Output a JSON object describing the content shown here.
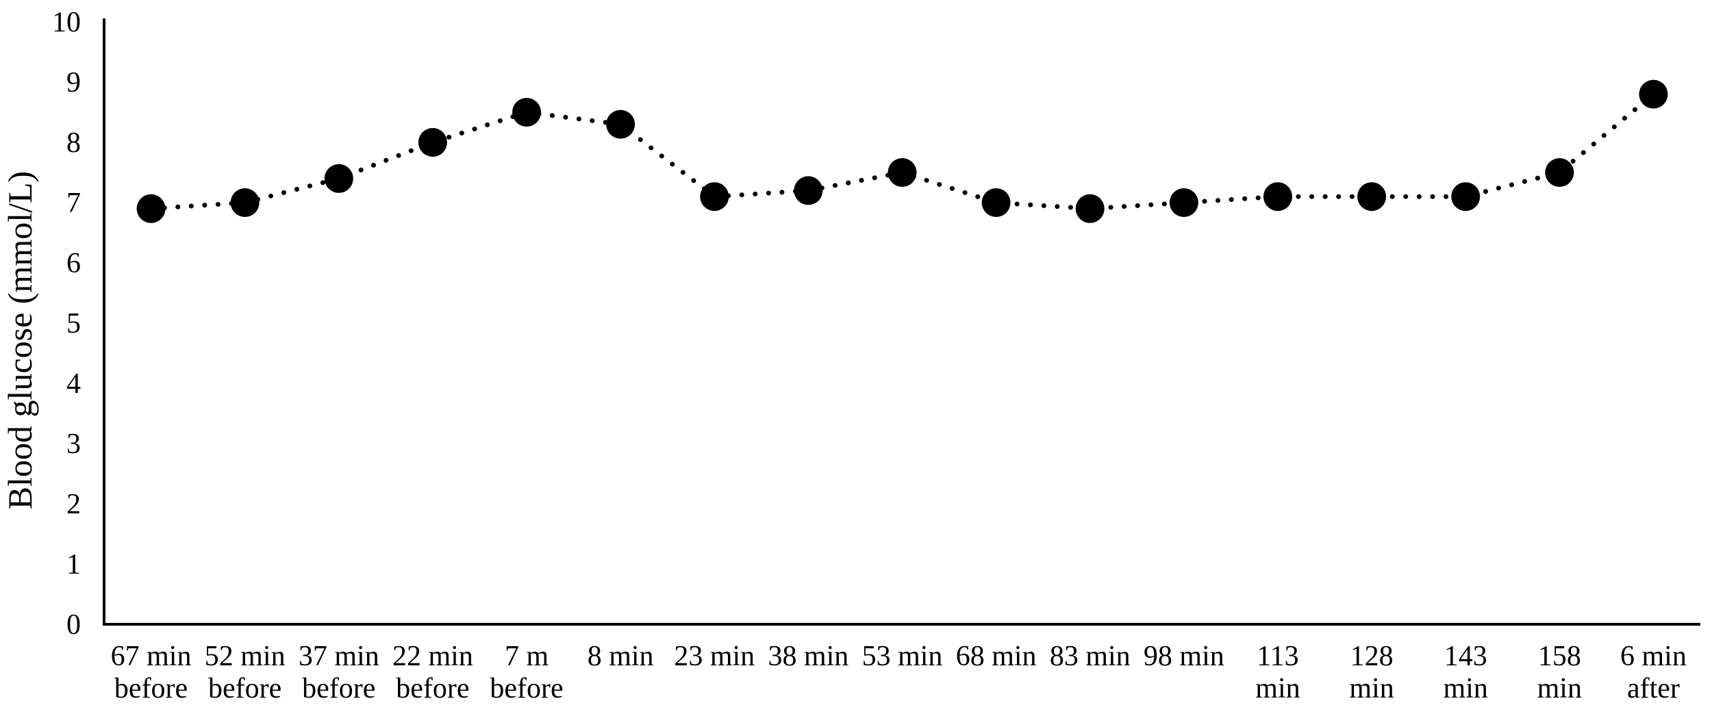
{
  "figure": {
    "background": "#ffffff",
    "series_color": "#000000",
    "axis_color": "#000000"
  },
  "chart_data": {
    "type": "line",
    "title": "",
    "xlabel": "",
    "ylabel": "Blood glucose (mmol/L)",
    "ylim": [
      0,
      10
    ],
    "yticks": [
      0,
      1,
      2,
      3,
      4,
      5,
      6,
      7,
      8,
      9,
      10
    ],
    "grid": false,
    "legend": false,
    "line_style": "dotted",
    "marker": "filled-circle",
    "marker_color": "#000000",
    "series_name": "Blood glucose",
    "categories": [
      "67 min before",
      "52 min before",
      "37 min before",
      "22 min before",
      "7 m before",
      "8 min",
      "23 min",
      "38 min",
      "53 min",
      "68 min",
      "83 min",
      "98 min",
      "113 min",
      "128 min",
      "143 min",
      "158 min",
      "6 min after"
    ],
    "category_label_lines": [
      [
        "67 min",
        "before"
      ],
      [
        "52 min",
        "before"
      ],
      [
        "37 min",
        "before"
      ],
      [
        "22 min",
        "before"
      ],
      [
        "7 m",
        "before"
      ],
      [
        "8 min"
      ],
      [
        "23 min"
      ],
      [
        "38 min"
      ],
      [
        "53 min"
      ],
      [
        "68 min"
      ],
      [
        "83 min"
      ],
      [
        "98 min"
      ],
      [
        "113",
        "min"
      ],
      [
        "128",
        "min"
      ],
      [
        "143",
        "min"
      ],
      [
        "158",
        "min"
      ],
      [
        "6 min",
        "after"
      ]
    ],
    "values": [
      6.9,
      7.0,
      7.4,
      8.0,
      8.5,
      8.3,
      7.1,
      7.2,
      7.5,
      7.0,
      6.9,
      7.0,
      7.1,
      7.1,
      7.1,
      7.5,
      8.8
    ]
  }
}
